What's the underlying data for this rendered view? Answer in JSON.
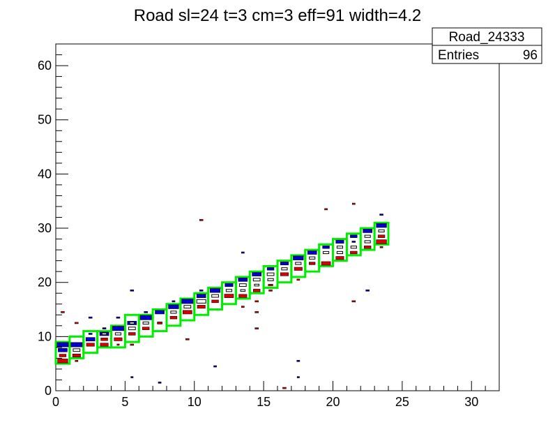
{
  "chart_data": {
    "type": "heatmap",
    "title": "Road sl=24 t=3 cm=3 eff=91 width=4.2",
    "xlabel": "",
    "ylabel": "",
    "xlim": [
      0,
      32
    ],
    "ylim": [
      0,
      64
    ],
    "x_ticks": [
      0,
      5,
      10,
      15,
      20,
      25,
      30
    ],
    "y_ticks": [
      0,
      10,
      20,
      30,
      40,
      50,
      60
    ],
    "colors": {
      "road": "#00ee00",
      "blue": "#0000cc",
      "red": "#dd0000",
      "white": "#ffffff"
    },
    "stats_box": {
      "name": "Road_24333",
      "entries_label": "Entries",
      "entries_value": "96"
    },
    "road_boxes": [
      {
        "x": [
          0,
          1
        ],
        "y": [
          5,
          9
        ]
      },
      {
        "x": [
          1,
          2
        ],
        "y": [
          6,
          10
        ]
      },
      {
        "x": [
          2,
          3
        ],
        "y": [
          7,
          11
        ]
      },
      {
        "x": [
          3,
          4
        ],
        "y": [
          8,
          11
        ]
      },
      {
        "x": [
          4,
          5
        ],
        "y": [
          8,
          12
        ]
      },
      {
        "x": [
          5,
          6
        ],
        "y": [
          9,
          14
        ]
      },
      {
        "x": [
          6,
          7
        ],
        "y": [
          10,
          14
        ]
      },
      {
        "x": [
          7,
          8
        ],
        "y": [
          11,
          15
        ]
      },
      {
        "x": [
          8,
          9
        ],
        "y": [
          12,
          16
        ]
      },
      {
        "x": [
          9,
          10
        ],
        "y": [
          13,
          17
        ]
      },
      {
        "x": [
          10,
          11
        ],
        "y": [
          14,
          18
        ]
      },
      {
        "x": [
          11,
          12
        ],
        "y": [
          15,
          19
        ]
      },
      {
        "x": [
          12,
          13
        ],
        "y": [
          16,
          20
        ]
      },
      {
        "x": [
          13,
          14
        ],
        "y": [
          17,
          21
        ]
      },
      {
        "x": [
          14,
          15
        ],
        "y": [
          18,
          22
        ]
      },
      {
        "x": [
          15,
          16
        ],
        "y": [
          19,
          23
        ]
      },
      {
        "x": [
          16,
          17
        ],
        "y": [
          20,
          24
        ]
      },
      {
        "x": [
          17,
          18
        ],
        "y": [
          21,
          25
        ]
      },
      {
        "x": [
          18,
          19
        ],
        "y": [
          22,
          26
        ]
      },
      {
        "x": [
          19,
          20
        ],
        "y": [
          23,
          27
        ]
      },
      {
        "x": [
          20,
          21
        ],
        "y": [
          24,
          28
        ]
      },
      {
        "x": [
          21,
          22
        ],
        "y": [
          25,
          29
        ]
      },
      {
        "x": [
          22,
          23
        ],
        "y": [
          26,
          30
        ]
      },
      {
        "x": [
          23,
          24
        ],
        "y": [
          27,
          31
        ]
      }
    ],
    "layers": [
      {
        "name": "blue",
        "cells": [
          [
            0,
            8,
            1.0
          ],
          [
            1,
            8,
            1.0
          ],
          [
            2,
            9,
            0.8
          ],
          [
            2,
            10,
            0.3
          ],
          [
            3,
            10,
            0.8
          ],
          [
            3,
            11,
            0.3
          ],
          [
            4,
            11,
            1.0
          ],
          [
            5,
            12,
            0.8
          ],
          [
            6,
            13,
            1.0
          ],
          [
            7,
            14,
            0.8
          ],
          [
            8,
            15,
            0.9
          ],
          [
            9,
            16,
            1.0
          ],
          [
            10,
            17,
            0.8
          ],
          [
            11,
            18,
            0.9
          ],
          [
            12,
            19,
            0.7
          ],
          [
            13,
            20,
            0.8
          ],
          [
            14,
            21,
            0.8
          ],
          [
            15,
            22,
            0.6
          ],
          [
            16,
            23,
            0.7
          ],
          [
            17,
            24,
            0.9
          ],
          [
            18,
            25,
            0.8
          ],
          [
            19,
            26,
            0.6
          ],
          [
            20,
            27,
            0.7
          ],
          [
            21,
            28,
            0.6
          ],
          [
            22,
            29,
            0.8
          ],
          [
            23,
            30,
            0.9
          ],
          [
            0,
            7,
            0.8
          ],
          [
            2,
            13,
            0.3
          ],
          [
            3,
            11,
            0.25
          ],
          [
            4,
            13,
            0.3
          ],
          [
            5,
            18,
            0.3
          ],
          [
            6,
            14,
            0.3
          ],
          [
            8,
            16,
            0.25
          ],
          [
            10,
            18,
            0.3
          ],
          [
            11,
            4,
            0.25
          ],
          [
            13,
            25,
            0.25
          ],
          [
            17,
            5,
            0.25
          ],
          [
            17,
            2,
            0.2
          ],
          [
            5,
            2,
            0.2
          ],
          [
            7,
            1,
            0.25
          ],
          [
            22,
            18,
            0.3
          ],
          [
            23,
            32,
            0.3
          ],
          [
            21,
            27,
            0.3
          ]
        ]
      },
      {
        "name": "white",
        "cells": [
          [
            1,
            7,
            0.6
          ],
          [
            4,
            10,
            0.5
          ],
          [
            5,
            11,
            0.6
          ],
          [
            6,
            12,
            0.5
          ],
          [
            7,
            12,
            0.4
          ],
          [
            9,
            15,
            0.6
          ],
          [
            10,
            16,
            0.8
          ],
          [
            11,
            17,
            0.6
          ],
          [
            12,
            18,
            0.5
          ],
          [
            13,
            19,
            0.6
          ],
          [
            14,
            20,
            0.6
          ],
          [
            15,
            21,
            0.6
          ],
          [
            16,
            22,
            0.5
          ],
          [
            17,
            23,
            0.5
          ],
          [
            18,
            23,
            0.5
          ],
          [
            19,
            25,
            0.5
          ],
          [
            20,
            26,
            0.5
          ],
          [
            21,
            26,
            0.5
          ],
          [
            22,
            27,
            0.5
          ],
          [
            23,
            29,
            0.5
          ],
          [
            8,
            14,
            0.5
          ],
          [
            3,
            10,
            0.4
          ],
          [
            12,
            17,
            0.4
          ],
          [
            13,
            18,
            0.4
          ],
          [
            14,
            19,
            0.4
          ],
          [
            15,
            20,
            0.5
          ],
          [
            16,
            21,
            0.4
          ],
          [
            18,
            24,
            0.5
          ],
          [
            20,
            25,
            0.5
          ],
          [
            22,
            28,
            0.5
          ],
          [
            0,
            6,
            0.4
          ],
          [
            5,
            12,
            0.4
          ]
        ]
      },
      {
        "name": "red",
        "cells": [
          [
            0,
            5,
            0.9
          ],
          [
            0,
            6,
            0.6
          ],
          [
            1,
            6,
            0.7
          ],
          [
            2,
            8,
            0.7
          ],
          [
            3,
            8,
            0.7
          ],
          [
            3,
            9,
            0.6
          ],
          [
            4,
            9,
            0.7
          ],
          [
            5,
            10,
            0.6
          ],
          [
            6,
            11,
            0.6
          ],
          [
            7,
            12,
            0.4
          ],
          [
            8,
            13,
            0.6
          ],
          [
            9,
            14,
            0.8
          ],
          [
            10,
            15,
            0.7
          ],
          [
            11,
            16,
            0.6
          ],
          [
            12,
            17,
            0.8
          ],
          [
            13,
            17,
            0.7
          ],
          [
            14,
            18,
            0.6
          ],
          [
            15,
            19,
            0.4
          ],
          [
            16,
            21,
            0.7
          ],
          [
            17,
            22,
            0.7
          ],
          [
            18,
            23,
            0.5
          ],
          [
            19,
            23,
            0.8
          ],
          [
            20,
            24,
            0.7
          ],
          [
            21,
            25,
            0.6
          ],
          [
            22,
            26,
            0.6
          ],
          [
            23,
            27,
            0.9
          ],
          [
            23,
            28,
            0.6
          ],
          [
            0,
            14,
            0.3
          ],
          [
            1,
            12,
            0.3
          ],
          [
            1,
            5,
            0.25
          ],
          [
            5,
            8,
            0.3
          ],
          [
            4,
            8,
            0.2
          ],
          [
            9,
            9,
            0.3
          ],
          [
            10,
            31,
            0.3
          ],
          [
            13,
            15,
            0.25
          ],
          [
            14,
            16,
            0.3
          ],
          [
            14,
            14,
            0.3
          ],
          [
            14,
            11,
            0.3
          ],
          [
            16,
            0,
            0.3
          ],
          [
            17,
            20,
            0.25
          ],
          [
            19,
            33,
            0.25
          ],
          [
            21,
            34,
            0.25
          ],
          [
            21,
            16,
            0.3
          ],
          [
            15,
            18,
            0.3
          ],
          [
            23,
            26,
            0.25
          ]
        ]
      }
    ]
  }
}
